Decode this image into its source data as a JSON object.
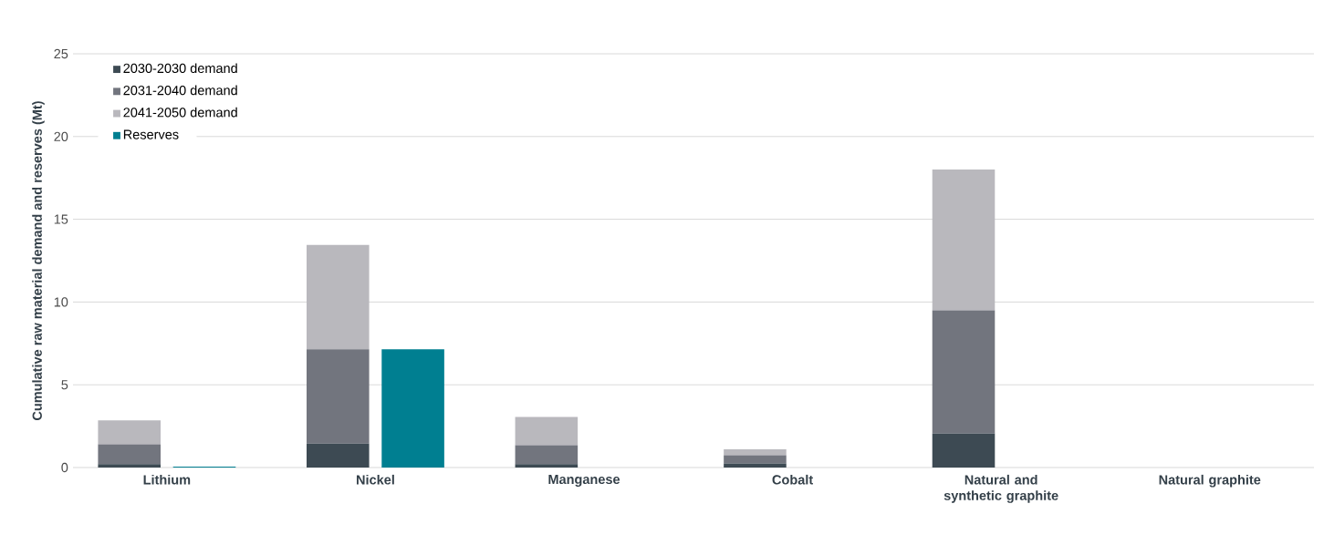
{
  "chart_data": [
    {
      "type": "bar",
      "ylabel": "Cumulative raw material demand and reserves (Mt)",
      "categories": [
        "Lithium",
        "Nickel",
        "Manganese",
        "Cobalt",
        "Natural and synthetic graphite",
        "Natural graphite"
      ],
      "stacked": true,
      "series": [
        {
          "name": "2030-2030 demand",
          "color": "#3d4a53",
          "values": [
            0.2,
            1.45,
            0.2,
            0.25,
            2.05,
            null
          ]
        },
        {
          "name": "2031-2040 demand",
          "color": "#72757e",
          "values": [
            1.2,
            5.7,
            1.15,
            0.5,
            7.45,
            null
          ]
        },
        {
          "name": "2041-2050 demand",
          "color": "#b9b8bd",
          "values": [
            1.45,
            6.3,
            1.7,
            0.35,
            8.5,
            null
          ]
        }
      ],
      "ylim": [
        0,
        25
      ],
      "yticks": [
        0,
        5,
        10,
        15,
        20,
        25
      ],
      "grid": "y",
      "legend": "top left"
    },
    {
      "type": "bar",
      "categories": [
        null,
        null,
        null,
        null,
        null,
        null
      ],
      "series": [
        {
          "name": "Reserves",
          "color": "#007f91",
          "values": [
            0.05,
            7.15,
            null,
            null,
            null,
            null
          ]
        }
      ],
      "ylim": [
        0,
        25
      ],
      "yticks": [
        0,
        5,
        10,
        15,
        20,
        25
      ],
      "tick_labels": false,
      "legend": "top left"
    }
  ]
}
